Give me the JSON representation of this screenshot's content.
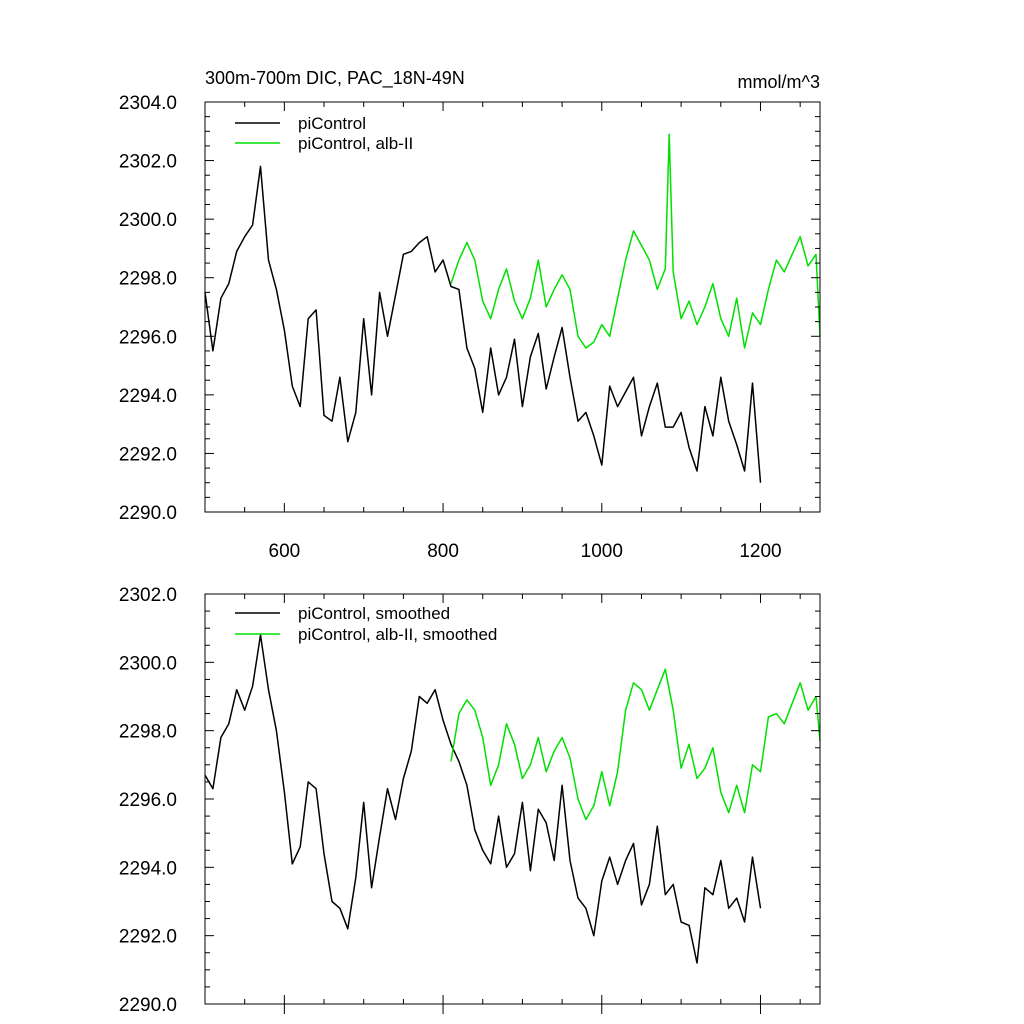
{
  "chart_data": [
    {
      "type": "line",
      "title": "300m-700m DIC, PAC_18N-49N",
      "units": "mmol/m^3",
      "xlim": [
        500,
        1275
      ],
      "ylim": [
        2290.0,
        2304.0
      ],
      "x_ticks": [
        600,
        800,
        1000,
        1200
      ],
      "x_tick_labels": [
        "600",
        "800",
        "1000",
        "1200"
      ],
      "y_ticks": [
        2290,
        2292,
        2294,
        2296,
        2298,
        2300,
        2302,
        2304
      ],
      "y_tick_labels": [
        "2290.0",
        "2292.0",
        "2294.0",
        "2296.0",
        "2298.0",
        "2300.0",
        "2302.0",
        "2304.0"
      ],
      "legend": "top-left",
      "series": [
        {
          "name": "piControl",
          "color": "#000000",
          "x": [
            500,
            510,
            520,
            530,
            540,
            550,
            560,
            570,
            580,
            590,
            600,
            610,
            620,
            630,
            640,
            650,
            660,
            670,
            680,
            690,
            700,
            710,
            720,
            730,
            740,
            750,
            760,
            770,
            780,
            790,
            800,
            810,
            820,
            830,
            840,
            850,
            860,
            870,
            880,
            890,
            900,
            910,
            920,
            930,
            940,
            950,
            960,
            970,
            980,
            990,
            1000,
            1010,
            1020,
            1030,
            1040,
            1050,
            1060,
            1070,
            1080,
            1090,
            1100,
            1110,
            1120,
            1130,
            1140,
            1150,
            1160,
            1170,
            1180,
            1190,
            1200
          ],
          "values": [
            2297.5,
            2295.5,
            2297.3,
            2297.8,
            2298.9,
            2299.4,
            2299.8,
            2301.8,
            2298.6,
            2297.6,
            2296.2,
            2294.3,
            2293.6,
            2296.6,
            2296.9,
            2293.3,
            2293.1,
            2294.6,
            2292.4,
            2293.4,
            2296.6,
            2294.0,
            2297.5,
            2296.0,
            2297.4,
            2298.8,
            2298.9,
            2299.2,
            2299.4,
            2298.2,
            2298.6,
            2297.7,
            2297.6,
            2295.6,
            2294.9,
            2293.4,
            2295.6,
            2294.0,
            2294.6,
            2295.9,
            2293.6,
            2295.3,
            2296.1,
            2294.2,
            2295.3,
            2296.3,
            2294.6,
            2293.1,
            2293.4,
            2292.6,
            2291.6,
            2294.3,
            2293.6,
            2294.1,
            2294.6,
            2292.6,
            2293.6,
            2294.4,
            2292.9,
            2292.9,
            2293.4,
            2292.2,
            2291.4,
            2293.6,
            2292.6,
            2294.6,
            2293.1,
            2292.3,
            2291.4,
            2294.4,
            2291.0
          ]
        },
        {
          "name": "piControl, alb-II",
          "color": "#00e000",
          "x": [
            810,
            820,
            830,
            840,
            850,
            860,
            870,
            880,
            890,
            900,
            910,
            920,
            930,
            940,
            950,
            960,
            970,
            980,
            990,
            1000,
            1010,
            1020,
            1030,
            1040,
            1050,
            1060,
            1070,
            1080,
            1085,
            1090,
            1100,
            1110,
            1120,
            1130,
            1140,
            1150,
            1160,
            1170,
            1180,
            1190,
            1200,
            1210,
            1220,
            1230,
            1240,
            1250,
            1260,
            1270,
            1275
          ],
          "values": [
            2297.8,
            2298.6,
            2299.2,
            2298.6,
            2297.2,
            2296.6,
            2297.6,
            2298.3,
            2297.2,
            2296.6,
            2297.3,
            2298.6,
            2297.0,
            2297.6,
            2298.1,
            2297.6,
            2296.0,
            2295.6,
            2295.8,
            2296.4,
            2296.0,
            2297.3,
            2298.6,
            2299.6,
            2299.1,
            2298.6,
            2297.6,
            2298.3,
            2302.9,
            2298.2,
            2296.6,
            2297.2,
            2296.4,
            2297.0,
            2297.8,
            2296.6,
            2296.0,
            2297.3,
            2295.6,
            2296.8,
            2296.4,
            2297.6,
            2298.6,
            2298.2,
            2298.8,
            2299.4,
            2298.4,
            2298.8,
            2296.0
          ]
        }
      ]
    },
    {
      "type": "line",
      "title": "",
      "xlim": [
        500,
        1275
      ],
      "ylim": [
        2290.0,
        2302.0
      ],
      "x_ticks": [
        600,
        800,
        1000,
        1200
      ],
      "y_ticks": [
        2290,
        2292,
        2294,
        2296,
        2298,
        2300,
        2302
      ],
      "y_tick_labels": [
        "2290.0",
        "2292.0",
        "2294.0",
        "2296.0",
        "2298.0",
        "2300.0",
        "2302.0"
      ],
      "legend": "top-left",
      "series": [
        {
          "name": "piControl, smoothed",
          "color": "#000000",
          "x": [
            500,
            510,
            520,
            530,
            540,
            550,
            560,
            570,
            580,
            590,
            600,
            610,
            620,
            630,
            640,
            650,
            660,
            670,
            680,
            690,
            700,
            710,
            720,
            730,
            740,
            750,
            760,
            770,
            780,
            790,
            800,
            810,
            820,
            830,
            840,
            850,
            860,
            870,
            880,
            890,
            900,
            910,
            920,
            930,
            940,
            950,
            960,
            970,
            980,
            990,
            1000,
            1010,
            1020,
            1030,
            1040,
            1050,
            1060,
            1070,
            1080,
            1090,
            1100,
            1110,
            1120,
            1130,
            1140,
            1150,
            1160,
            1170,
            1180,
            1190,
            1200
          ],
          "values": [
            2296.7,
            2296.3,
            2297.8,
            2298.2,
            2299.2,
            2298.6,
            2299.3,
            2300.8,
            2299.2,
            2298.0,
            2296.2,
            2294.1,
            2294.6,
            2296.5,
            2296.3,
            2294.4,
            2293.0,
            2292.8,
            2292.2,
            2293.7,
            2295.9,
            2293.4,
            2294.9,
            2296.3,
            2295.4,
            2296.6,
            2297.4,
            2299.0,
            2298.8,
            2299.2,
            2298.3,
            2297.6,
            2297.1,
            2296.4,
            2295.1,
            2294.5,
            2294.1,
            2295.5,
            2294.0,
            2294.4,
            2295.9,
            2293.9,
            2295.7,
            2295.3,
            2294.2,
            2296.4,
            2294.2,
            2293.1,
            2292.8,
            2292.0,
            2293.6,
            2294.3,
            2293.5,
            2294.2,
            2294.7,
            2292.9,
            2293.5,
            2295.2,
            2293.2,
            2293.5,
            2292.4,
            2292.3,
            2291.2,
            2293.4,
            2293.2,
            2294.2,
            2292.8,
            2293.1,
            2292.4,
            2294.3,
            2292.8
          ]
        },
        {
          "name": "piControl, alb-II, smoothed",
          "color": "#00e000",
          "x": [
            810,
            820,
            830,
            840,
            850,
            860,
            870,
            880,
            890,
            900,
            910,
            920,
            930,
            940,
            950,
            960,
            970,
            980,
            990,
            1000,
            1010,
            1020,
            1030,
            1040,
            1050,
            1060,
            1070,
            1080,
            1090,
            1100,
            1110,
            1120,
            1130,
            1140,
            1150,
            1160,
            1170,
            1180,
            1190,
            1200,
            1210,
            1220,
            1230,
            1240,
            1250,
            1260,
            1270,
            1275
          ],
          "values": [
            2297.1,
            2298.5,
            2298.9,
            2298.6,
            2297.8,
            2296.4,
            2297.0,
            2298.2,
            2297.6,
            2296.6,
            2297.0,
            2297.8,
            2296.8,
            2297.4,
            2297.8,
            2297.2,
            2296.0,
            2295.4,
            2295.8,
            2296.8,
            2295.8,
            2296.8,
            2298.6,
            2299.4,
            2299.2,
            2298.6,
            2299.2,
            2299.8,
            2298.6,
            2296.9,
            2297.6,
            2296.6,
            2296.9,
            2297.5,
            2296.2,
            2295.6,
            2296.4,
            2295.6,
            2297.0,
            2296.8,
            2298.4,
            2298.5,
            2298.2,
            2298.8,
            2299.4,
            2298.6,
            2299.0,
            2297.7
          ]
        }
      ]
    }
  ]
}
